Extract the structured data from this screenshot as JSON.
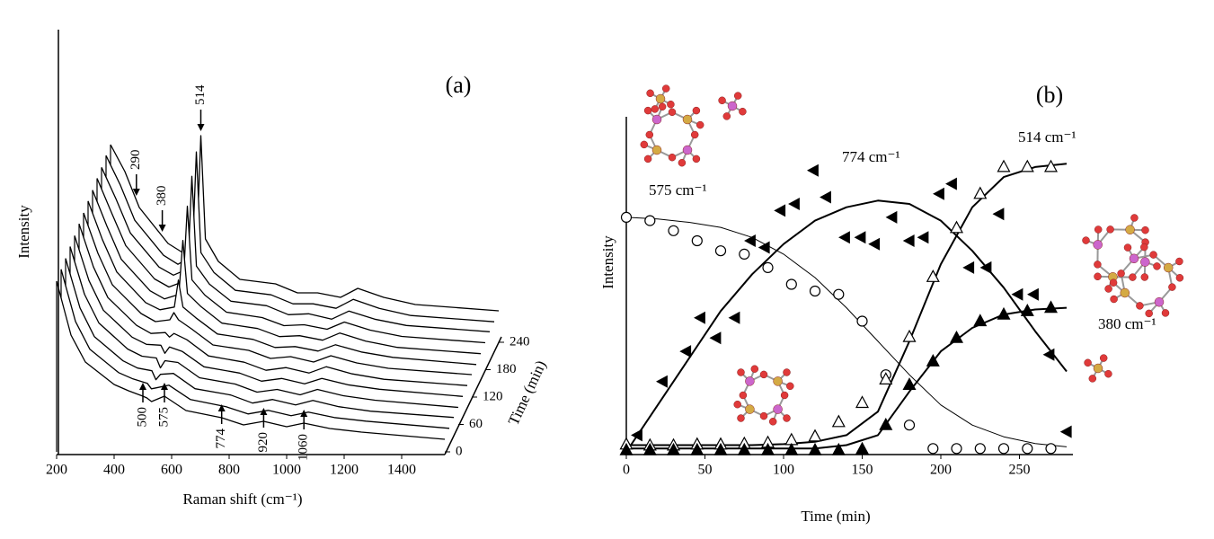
{
  "chart_data": [
    {
      "type": "waterfall",
      "title": "(a)",
      "x_label": "Raman shift (cm⁻¹)",
      "y_label": "Intensity",
      "z_label": "Time (min)",
      "x": [
        200,
        250,
        300,
        400,
        450,
        500,
        514,
        530,
        575,
        650,
        774,
        850,
        920,
        1000,
        1060,
        1150,
        1260,
        1550
      ],
      "xlim": [
        200,
        1550
      ],
      "xticks": [
        200,
        400,
        600,
        800,
        1000,
        1200,
        1400
      ],
      "zlim": [
        0,
        240
      ],
      "zticks": [
        0,
        60,
        120,
        180,
        240
      ],
      "color": "#000000",
      "series": [
        {
          "time": 0,
          "values": [
            190,
            130,
            100,
            75,
            68,
            62,
            60,
            56,
            62,
            46,
            38,
            30,
            34,
            28,
            32,
            26,
            22,
            14
          ]
        },
        {
          "time": 20,
          "values": [
            193,
            135,
            104,
            78,
            71,
            66,
            60,
            61,
            64,
            48,
            40,
            32,
            36,
            30,
            34,
            28,
            24,
            16
          ]
        },
        {
          "time": 40,
          "values": [
            195,
            140,
            108,
            81,
            73,
            70,
            60,
            66,
            67,
            50,
            43,
            34,
            38,
            32,
            37,
            30,
            25,
            18
          ]
        },
        {
          "time": 60,
          "values": [
            198,
            145,
            113,
            84,
            76,
            74,
            63,
            71,
            69,
            52,
            45,
            36,
            39,
            33,
            39,
            32,
            27,
            19
          ]
        },
        {
          "time": 80,
          "values": [
            200,
            150,
            117,
            87,
            79,
            78,
            69,
            76,
            71,
            54,
            47,
            38,
            41,
            35,
            41,
            34,
            29,
            21
          ]
        },
        {
          "time": 100,
          "values": [
            203,
            155,
            121,
            90,
            81,
            82,
            77,
            81,
            74,
            56,
            49,
            40,
            43,
            37,
            44,
            36,
            30,
            23
          ]
        },
        {
          "time": 120,
          "values": [
            205,
            160,
            125,
            93,
            84,
            86,
            94,
            86,
            76,
            58,
            52,
            43,
            45,
            39,
            46,
            38,
            32,
            25
          ]
        },
        {
          "time": 140,
          "values": [
            208,
            165,
            129,
            95,
            87,
            90,
            120,
            90,
            78,
            60,
            54,
            45,
            46,
            41,
            48,
            40,
            34,
            26
          ]
        },
        {
          "time": 160,
          "values": [
            210,
            170,
            133,
            98,
            89,
            94,
            154,
            95,
            81,
            62,
            56,
            47,
            48,
            43,
            51,
            42,
            35,
            28
          ]
        },
        {
          "time": 180,
          "values": [
            213,
            175,
            138,
            101,
            92,
            98,
            182,
            100,
            83,
            64,
            58,
            49,
            50,
            45,
            53,
            44,
            37,
            30
          ]
        },
        {
          "time": 200,
          "values": [
            215,
            180,
            142,
            104,
            95,
            102,
            205,
            105,
            85,
            66,
            61,
            51,
            52,
            46,
            55,
            46,
            39,
            32
          ]
        },
        {
          "time": 220,
          "values": [
            218,
            185,
            146,
            107,
            97,
            106,
            222,
            110,
            88,
            68,
            63,
            53,
            53,
            48,
            58,
            48,
            40,
            33
          ]
        },
        {
          "time": 240,
          "values": [
            220,
            190,
            150,
            110,
            100,
            110,
            230,
            115,
            90,
            70,
            65,
            55,
            55,
            50,
            60,
            50,
            42,
            35
          ]
        }
      ],
      "peak_labels_back": [
        290,
        380,
        514
      ],
      "peak_labels_front": [
        500,
        575,
        774,
        920,
        1060
      ]
    },
    {
      "type": "scatter",
      "title": "(b)",
      "x_label": "Time (min)",
      "y_label": "Intensity",
      "xlim": [
        0,
        284
      ],
      "ylim": [
        0,
        100
      ],
      "xticks": [
        0,
        50,
        100,
        150,
        200,
        250
      ],
      "fit_x": [
        0,
        20,
        40,
        60,
        80,
        100,
        120,
        140,
        160,
        180,
        200,
        220,
        240,
        260,
        280
      ],
      "series": [
        {
          "name": "575 cm⁻¹",
          "marker": "open-circle",
          "color": "#000000",
          "fit_width": 1,
          "x": [
            0,
            15,
            30,
            45,
            60,
            75,
            90,
            105,
            120,
            135,
            150,
            165,
            180,
            195,
            210,
            225,
            240,
            255,
            270
          ],
          "values": [
            70,
            69,
            66,
            63,
            60,
            59,
            55,
            50,
            48,
            47,
            39,
            23,
            8,
            1,
            1,
            1,
            1,
            1,
            1
          ],
          "fit": [
            70,
            69.5,
            68.5,
            67,
            64,
            59,
            52,
            43,
            33,
            23,
            14,
            8,
            4.5,
            2.5,
            1.5
          ]
        },
        {
          "name": "774 cm⁻¹",
          "marker": "filled-left-triangle",
          "color": "#000000",
          "fit_width": 2,
          "x": [
            7,
            23,
            38,
            47,
            57,
            69,
            79,
            88,
            98,
            107,
            119,
            127,
            139,
            149,
            158,
            169,
            180,
            189,
            199,
            207,
            218,
            229,
            237,
            249,
            259,
            269,
            280
          ],
          "values": [
            5,
            21,
            30,
            40,
            34,
            40,
            63,
            61,
            72,
            74,
            84,
            76,
            64,
            64,
            62,
            70,
            63,
            64,
            77,
            80,
            55,
            55,
            71,
            47,
            47,
            29,
            6
          ],
          "fit": [
            0,
            14,
            28,
            42,
            53,
            62,
            69,
            73,
            75,
            74,
            69,
            60,
            49,
            36,
            24
          ]
        },
        {
          "name": "514 cm⁻¹",
          "marker": "open-triangle",
          "color": "#000000",
          "fit_width": 2,
          "x": [
            0,
            15,
            30,
            45,
            60,
            75,
            90,
            105,
            120,
            135,
            150,
            165,
            180,
            195,
            210,
            225,
            240,
            255,
            270
          ],
          "values": [
            2.2,
            1.9,
            1.9,
            2.2,
            2.2,
            2.4,
            2.7,
            3.5,
            4.6,
            8.9,
            14.6,
            21.6,
            34.3,
            52.2,
            66.8,
            77,
            85,
            85,
            85
          ],
          "fit": [
            2,
            2,
            2,
            2,
            2,
            2.3,
            3,
            5,
            12,
            33,
            56,
            73,
            82,
            85,
            86
          ]
        },
        {
          "name": "380 cm⁻¹",
          "marker": "filled-triangle",
          "color": "#000000",
          "fit_width": 2,
          "x": [
            0,
            15,
            30,
            45,
            60,
            75,
            90,
            105,
            120,
            135,
            150,
            165,
            180,
            195,
            210,
            225,
            240,
            255,
            270
          ],
          "values": [
            0.5,
            0.5,
            0.5,
            0.5,
            0.5,
            0.5,
            0.5,
            0.5,
            0.5,
            0.5,
            0.8,
            8,
            20,
            27,
            34,
            39,
            41,
            42,
            43
          ],
          "fit": [
            1,
            1,
            1,
            1,
            1,
            1,
            1,
            2,
            5,
            18,
            30,
            37,
            41,
            42.5,
            43
          ]
        }
      ]
    }
  ]
}
